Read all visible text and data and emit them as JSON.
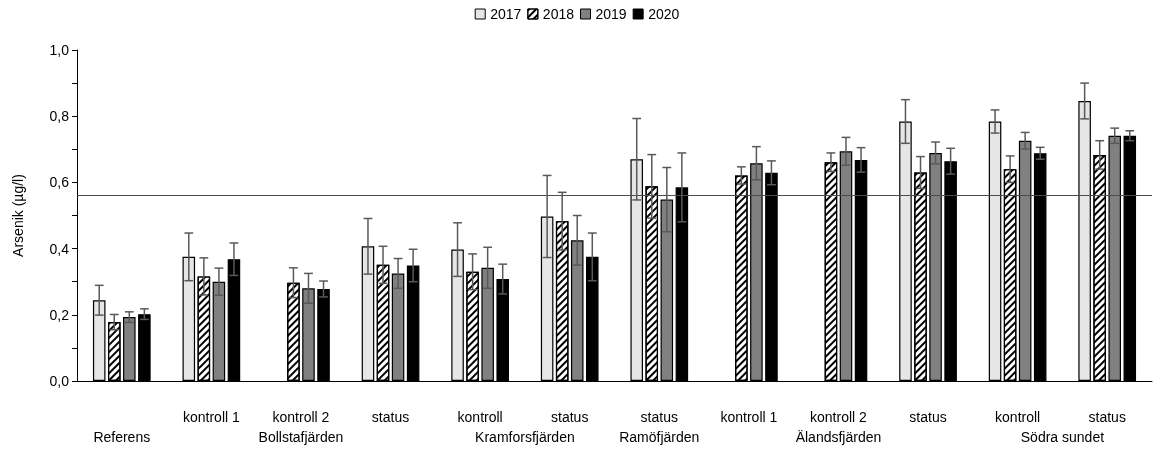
{
  "chart_data": {
    "type": "bar",
    "ylabel": "Arsenik (µg/l)",
    "categories": [
      null,
      "kontroll 1",
      "kontroll 2",
      "status",
      "kontroll",
      "status",
      "status",
      "kontroll 1",
      "kontroll 2",
      "status",
      "kontroll",
      "status"
    ],
    "annotations": [
      "Referens",
      "Bollstafjärden",
      "Kramforsfjärden",
      "Ramöfjärden",
      "Älandsfjärden",
      "Södra sundet"
    ],
    "series": [
      {
        "name": "2017",
        "color": "#e6e6e6",
        "values": [
          0.244,
          0.375,
          null,
          0.407,
          0.397,
          0.497,
          0.67,
          null,
          null,
          0.784,
          0.784,
          0.846
        ],
        "errors": [
          0.045,
          0.072,
          null,
          0.084,
          0.081,
          0.124,
          0.123,
          null,
          null,
          0.066,
          0.035,
          0.054
        ]
      },
      {
        "name": "2018",
        "color": "#ffffff",
        "values": [
          0.178,
          0.316,
          0.297,
          0.351,
          0.33,
          0.483,
          0.588,
          0.621,
          0.661,
          0.63,
          0.64,
          0.683
        ],
        "errors": [
          0.023,
          0.056,
          0.045,
          0.056,
          0.054,
          0.087,
          0.096,
          0.026,
          0.028,
          0.048,
          0.04,
          0.043
        ]
      },
      {
        "name": "2019",
        "color": "#808080",
        "values": [
          0.193,
          0.3,
          0.28,
          0.325,
          0.342,
          0.425,
          0.548,
          0.658,
          0.694,
          0.689,
          0.726,
          0.741
        ],
        "errors": [
          0.016,
          0.041,
          0.045,
          0.045,
          0.062,
          0.075,
          0.097,
          0.05,
          0.042,
          0.033,
          0.025,
          0.023
        ]
      },
      {
        "name": "2020",
        "color": "#000000",
        "values": [
          0.202,
          0.368,
          0.278,
          0.349,
          0.308,
          0.375,
          0.585,
          0.629,
          0.668,
          0.664,
          0.688,
          0.741
        ],
        "errors": [
          0.016,
          0.049,
          0.024,
          0.049,
          0.045,
          0.072,
          0.104,
          0.036,
          0.037,
          0.039,
          0.018,
          0.015
        ]
      }
    ],
    "ylim": [
      0,
      1.0
    ],
    "yticks": [
      {
        "value": 0,
        "label": "0,0"
      },
      {
        "value": 0.1,
        "label": null
      },
      {
        "value": 0.2,
        "label": "0,2"
      },
      {
        "value": 0.3,
        "label": null
      },
      {
        "value": 0.4,
        "label": "0,4"
      },
      {
        "value": 0.5,
        "label": null
      },
      {
        "value": 0.6,
        "label": "0,6"
      },
      {
        "value": 0.7,
        "label": null
      },
      {
        "value": 0.8,
        "label": "0,8"
      },
      {
        "value": 0.9,
        "label": null
      },
      {
        "value": 1.0,
        "label": "1,0"
      }
    ],
    "ref_lines": [
      {
        "axis": "y",
        "value": 0.56,
        "color": "#ff0000"
      }
    ],
    "grid": false,
    "legend": "top"
  }
}
